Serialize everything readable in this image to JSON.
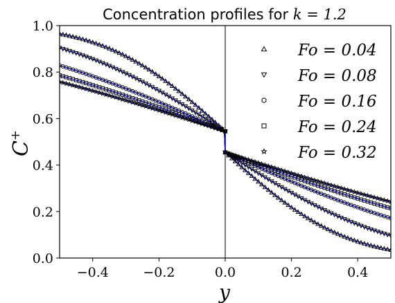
{
  "chart_data": {
    "type": "scatter",
    "title": "Concentration profiles for k = 1.2",
    "title_parts": {
      "prefix": "Concentration profiles for ",
      "math": "k = 1.2"
    },
    "xlabel": "y",
    "ylabel": "C",
    "ylabel_superscript": "+",
    "xlim": [
      -0.5,
      0.5
    ],
    "ylim": [
      0.0,
      1.0
    ],
    "xticks": [
      -0.4,
      -0.2,
      0.0,
      0.2,
      0.4
    ],
    "xtick_labels": [
      "−0.4",
      "−0.2",
      "0.0",
      "0.2",
      "0.4"
    ],
    "yticks": [
      0.0,
      0.2,
      0.4,
      0.6,
      0.8,
      1.0
    ],
    "ytick_labels": [
      "0.0",
      "0.2",
      "0.4",
      "0.6",
      "0.8",
      "1.0"
    ],
    "grid": false,
    "legend_position": "right",
    "interface_x": 0.0,
    "partition_k": 1.2,
    "line_color": "#0000cc",
    "marker_color": "#000000",
    "series": [
      {
        "name": "Fo = 0.04",
        "fo": 0.04,
        "marker": "triangle-up"
      },
      {
        "name": "Fo = 0.08",
        "fo": 0.08,
        "marker": "triangle-down"
      },
      {
        "name": "Fo = 0.16",
        "fo": 0.16,
        "marker": "circle"
      },
      {
        "name": "Fo = 0.24",
        "fo": 0.24,
        "marker": "square"
      },
      {
        "name": "Fo = 0.32",
        "fo": 0.32,
        "marker": "star"
      }
    ]
  }
}
